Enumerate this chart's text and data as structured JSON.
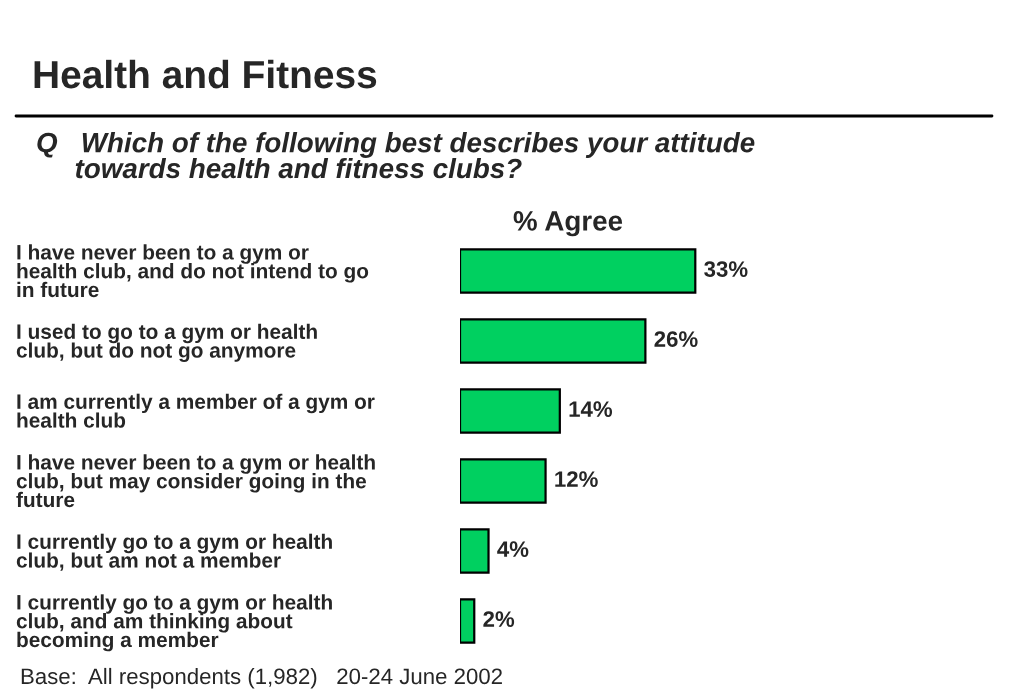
{
  "chart_data": {
    "type": "bar",
    "orientation": "horizontal",
    "title": "Health and Fitness",
    "subtitle": "Q   Which of the following best describes your attitude\n     towards health and fitness clubs?",
    "xlabel": "% Agree",
    "categories": [
      "I have never been to a gym or\nhealth club, and do not intend to go\nin future",
      "I used to go to a gym or health\nclub, but do not go anymore",
      "I am currently a member of a gym or\nhealth club",
      "I have never been to a gym or health\nclub, but may consider going in the\nfuture",
      "I currently go to a gym or health\nclub, but am not a member",
      "I currently go to a gym or health\nclub, and am thinking about\nbecoming a member"
    ],
    "values": [
      33,
      26,
      14,
      12,
      4,
      2
    ],
    "value_labels": [
      "33%",
      "26%",
      "14%",
      "12%",
      "4%",
      "2%"
    ],
    "color": "#00d060",
    "tick_labels": "y",
    "grid": false,
    "legend": false,
    "annotations": [
      "Base:  All respondents (1,982)   20-24 June 2002"
    ]
  }
}
